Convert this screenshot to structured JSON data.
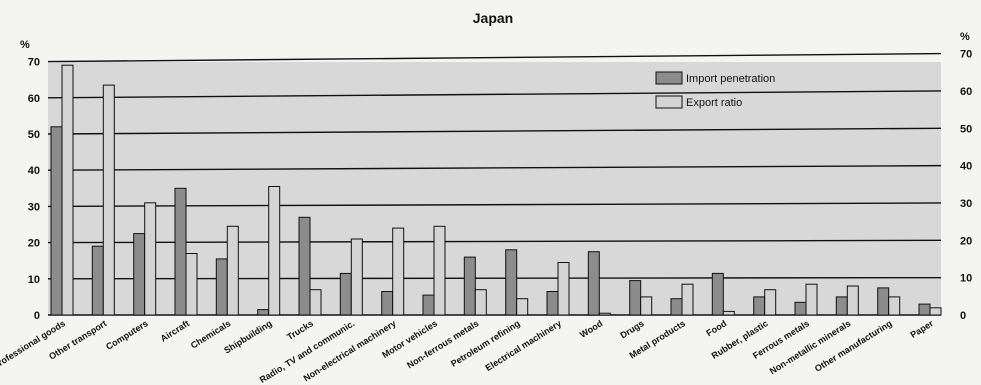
{
  "chart_data": {
    "type": "bar",
    "title": "Japan",
    "y_unit_left": "%",
    "y_unit_right": "%",
    "ylim": [
      0,
      70
    ],
    "yticks": [
      0,
      10,
      20,
      30,
      40,
      50,
      60,
      70
    ],
    "grid": true,
    "legend_position": "top-right",
    "categories": [
      "Professional goods",
      "Other transport",
      "Computers",
      "Aircraft",
      "Chemicals",
      "Shipbuilding",
      "Trucks",
      "Radio, TV and communic.",
      "Non-electrical machinery",
      "Motor vehicles",
      "Non-ferrous metals",
      "Petroleum refining",
      "Electrical machinery",
      "Wood",
      "Drugs",
      "Metal products",
      "Food",
      "Rubber, plastic",
      "Ferrous metals",
      "Non-metallic minerals",
      "Other manufacturing",
      "Paper"
    ],
    "series": [
      {
        "name": "Import penetration",
        "color": "#8c8c8c",
        "values": [
          52,
          19,
          22.5,
          35,
          15.5,
          1.5,
          27,
          11.5,
          6.5,
          5.5,
          16,
          18,
          6.5,
          17.5,
          9.5,
          4.5,
          11.5,
          5,
          3.5,
          5,
          7.5,
          3
        ]
      },
      {
        "name": "Export ratio",
        "color": "#d4d4d4",
        "values": [
          69,
          63.5,
          31,
          17,
          24.5,
          35.5,
          7,
          21,
          24,
          24.5,
          7,
          4.5,
          14.5,
          0.5,
          5,
          8.5,
          1,
          7,
          8.5,
          8,
          5,
          2
        ]
      }
    ]
  }
}
